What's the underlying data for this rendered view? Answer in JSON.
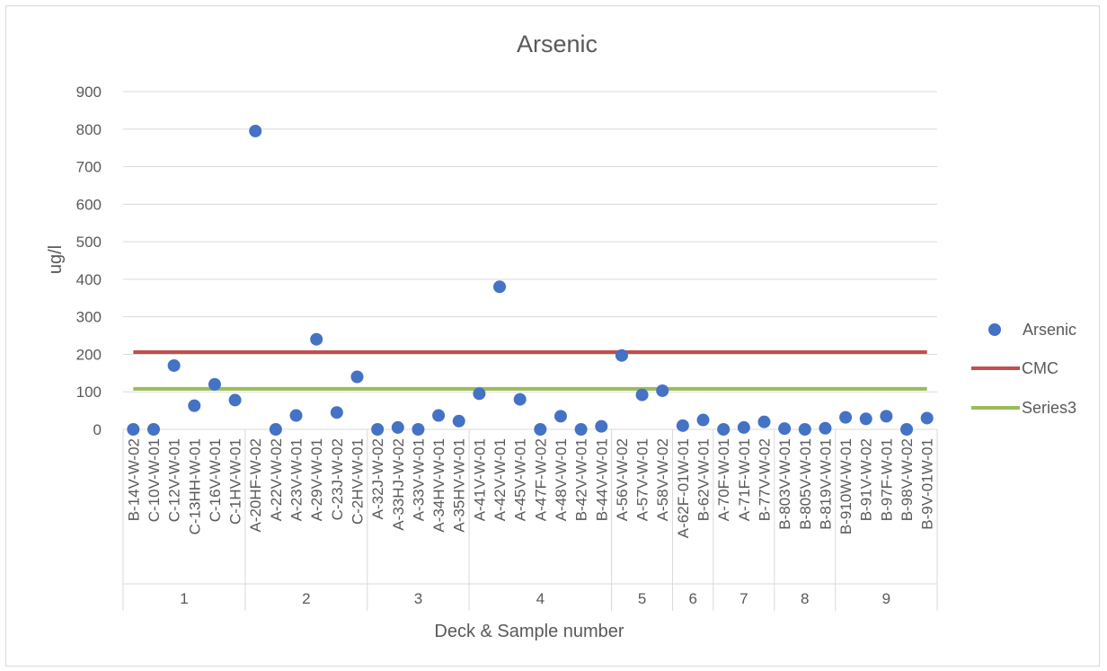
{
  "chart_data": {
    "type": "scatter",
    "title": "Arsenic",
    "xlabel": "Deck & Sample number",
    "ylabel": "ug/l",
    "ylim": [
      0,
      900
    ],
    "yticks": [
      0,
      100,
      200,
      300,
      400,
      500,
      600,
      700,
      800,
      900
    ],
    "grid": true,
    "legend_position": "right",
    "groups": [
      {
        "label": "1",
        "count": 6
      },
      {
        "label": "2",
        "count": 6
      },
      {
        "label": "3",
        "count": 5
      },
      {
        "label": "4",
        "count": 7
      },
      {
        "label": "5",
        "count": 3
      },
      {
        "label": "6",
        "count": 2
      },
      {
        "label": "7",
        "count": 3
      },
      {
        "label": "8",
        "count": 3
      },
      {
        "label": "9",
        "count": 5
      }
    ],
    "categories": [
      "B-14V-W-02",
      "C-10V-W-01",
      "C-12V-W-01",
      "C-13HH-W-01",
      "C-16V-W-01",
      "C-1HV-W-01",
      "A-20HF-W-02",
      "A-22V-W-02",
      "A-23V-W-01",
      "A-29V-W-01",
      "C-23J-W-02",
      "C-2HV-W-01",
      "A-32J-W-02",
      "A-33HJ-W-02",
      "A-33V-W-01",
      "A-34HV-W-01",
      "A-35HV-W-01",
      "A-41V-W-01",
      "A-42V-W-01",
      "A-45V-W-01",
      "A-47F-W-02",
      "A-48V-W-01",
      "B-42V-W-01",
      "B-44V-W-01",
      "A-56V-W-02",
      "A-57V-W-01",
      "A-58V-W-02",
      "A-62F-01W-01",
      "B-62V-W-01",
      "A-70F-W-01",
      "A-71F-W-01",
      "B-77V-W-02",
      "B-803V-W-01",
      "B-805V-W-01",
      "B-819V-W-01",
      "B-910W-W-01",
      "B-91V-W-02",
      "B-97F-W-01",
      "B-98V-W-02",
      "B-9V-01W-01"
    ],
    "series": [
      {
        "name": "Arsenic",
        "kind": "scatter",
        "color": "#4472c4",
        "values": [
          0,
          0,
          170,
          63,
          120,
          78,
          795,
          0,
          37,
          240,
          45,
          140,
          0,
          5,
          0,
          37,
          22,
          95,
          380,
          80,
          0,
          35,
          0,
          8,
          197,
          92,
          103,
          10,
          25,
          0,
          5,
          20,
          2,
          0,
          3,
          32,
          28,
          35,
          0,
          30
        ]
      },
      {
        "name": "CMC",
        "kind": "line",
        "color": "#c0504d",
        "constant": 206
      },
      {
        "name": "Series3",
        "kind": "line",
        "color": "#9bbb59",
        "constant": 108
      }
    ]
  }
}
